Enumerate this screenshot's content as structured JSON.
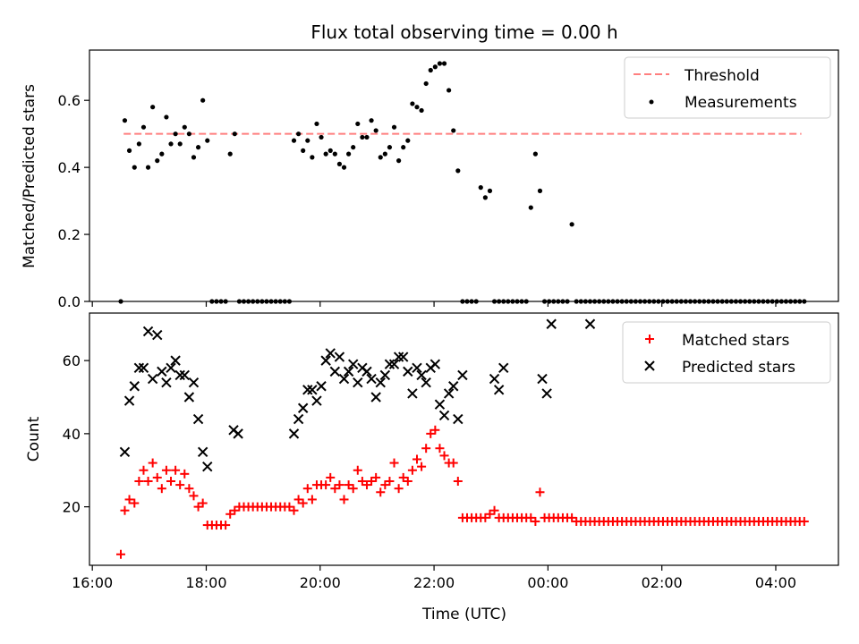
{
  "figure": {
    "title": "Flux total observing time = 0.00 h",
    "xlabel": "Time (UTC)"
  },
  "colors": {
    "threshold": "#ff7f7f",
    "measurements": "#000000",
    "matched": "#ff0000",
    "predicted": "#000000"
  },
  "chart_data": [
    {
      "type": "scatter",
      "ylabel": "Matched/Predicted stars",
      "xlim_hours": [
        15.95,
        29.1
      ],
      "ylim": [
        0,
        0.75
      ],
      "yticks": [
        0.0,
        0.2,
        0.4,
        0.6
      ],
      "ytick_labels": [
        "0.0",
        "0.2",
        "0.4",
        "0.6"
      ],
      "grid": false,
      "legend": "upper right",
      "threshold": {
        "name": "Threshold",
        "value": 0.5,
        "x_range": [
          16.55,
          28.45
        ],
        "style": "dashed"
      },
      "series": [
        {
          "name": "Measurements",
          "marker": "dot",
          "x": [
            16.5,
            16.57,
            16.65,
            16.74,
            16.82,
            16.9,
            16.98,
            17.06,
            17.14,
            17.22,
            17.3,
            17.38,
            17.46,
            17.54,
            17.62,
            17.7,
            17.78,
            17.86,
            17.94,
            18.02,
            18.1,
            18.18,
            18.26,
            18.34,
            18.42,
            18.5,
            18.58,
            18.66,
            18.74,
            18.82,
            18.9,
            18.98,
            19.06,
            19.14,
            19.22,
            19.3,
            19.38,
            19.46,
            19.54,
            19.62,
            19.7,
            19.78,
            19.86,
            19.94,
            20.02,
            20.1,
            20.18,
            20.26,
            20.34,
            20.42,
            20.5,
            20.58,
            20.66,
            20.74,
            20.82,
            20.9,
            20.98,
            21.06,
            21.14,
            21.22,
            21.3,
            21.38,
            21.46,
            21.54,
            21.62,
            21.7,
            21.78,
            21.86,
            21.94,
            22.02,
            22.1,
            22.18,
            22.26,
            22.34,
            22.42,
            22.5,
            22.58,
            22.66,
            22.74,
            22.82,
            22.9,
            22.98,
            23.06,
            23.14,
            23.22,
            23.3,
            23.38,
            23.46,
            23.54,
            23.62,
            23.7,
            23.78,
            23.86,
            23.94,
            24.02,
            24.1,
            24.18,
            24.26,
            24.34,
            24.42,
            24.5,
            24.58,
            24.66,
            24.74,
            24.82,
            24.9,
            24.98,
            25.06,
            25.14,
            25.22,
            25.3,
            25.38,
            25.46,
            25.54,
            25.62,
            25.7,
            25.78,
            25.86,
            25.94,
            26.02,
            26.1,
            26.18,
            26.26,
            26.34,
            26.42,
            26.5,
            26.58,
            26.66,
            26.74,
            26.82,
            26.9,
            26.98,
            27.06,
            27.14,
            27.22,
            27.3,
            27.38,
            27.46,
            27.54,
            27.62,
            27.7,
            27.78,
            27.86,
            27.94,
            28.02,
            28.1,
            28.18,
            28.26,
            28.34,
            28.42,
            28.5
          ],
          "y": [
            0.0,
            0.54,
            0.45,
            0.4,
            0.47,
            0.52,
            0.4,
            0.58,
            0.42,
            0.44,
            0.55,
            0.47,
            0.5,
            0.47,
            0.52,
            0.5,
            0.43,
            0.46,
            0.6,
            0.48,
            0.0,
            0.0,
            0.0,
            0.0,
            0.44,
            0.5,
            0.0,
            0.0,
            0.0,
            0.0,
            0.0,
            0.0,
            0.0,
            0.0,
            0.0,
            0.0,
            0.0,
            0.0,
            0.48,
            0.5,
            0.45,
            0.48,
            0.43,
            0.53,
            0.49,
            0.44,
            0.45,
            0.44,
            0.41,
            0.4,
            0.44,
            0.46,
            0.53,
            0.49,
            0.49,
            0.54,
            0.51,
            0.43,
            0.44,
            0.46,
            0.52,
            0.42,
            0.46,
            0.48,
            0.59,
            0.58,
            0.57,
            0.65,
            0.69,
            0.7,
            0.71,
            0.71,
            0.63,
            0.51,
            0.39,
            0.0,
            0.0,
            0.0,
            0.0,
            0.34,
            0.31,
            0.33,
            0.0,
            0.0,
            0.0,
            0.0,
            0.0,
            0.0,
            0.0,
            0.0,
            0.28,
            0.44,
            0.33,
            0.0,
            0.0,
            0.0,
            0.0,
            0.0,
            0.0,
            0.23,
            0.0,
            0.0,
            0.0,
            0.0,
            0.0,
            0.0,
            0.0,
            0.0,
            0.0,
            0.0,
            0.0,
            0.0,
            0.0,
            0.0,
            0.0,
            0.0,
            0.0,
            0.0,
            0.0,
            0.0,
            0.0,
            0.0,
            0.0,
            0.0,
            0.0,
            0.0,
            0.0,
            0.0,
            0.0,
            0.0,
            0.0,
            0.0,
            0.0,
            0.0,
            0.0,
            0.0,
            0.0,
            0.0,
            0.0,
            0.0,
            0.0,
            0.0,
            0.0,
            0.0,
            0.0,
            0.0,
            0.0,
            0.0,
            0.0,
            0.0,
            0.0
          ]
        }
      ]
    },
    {
      "type": "scatter",
      "ylabel": "Count",
      "xlim_hours": [
        15.95,
        29.1
      ],
      "ylim": [
        4,
        73
      ],
      "yticks": [
        20,
        40,
        60
      ],
      "ytick_labels": [
        "20",
        "40",
        "60"
      ],
      "xtick_hours": [
        16,
        18,
        20,
        22,
        24,
        26,
        28
      ],
      "xtick_labels": [
        "16:00",
        "18:00",
        "20:00",
        "22:00",
        "00:00",
        "02:00",
        "04:00"
      ],
      "grid": false,
      "legend": "upper right",
      "series": [
        {
          "name": "Matched stars",
          "marker": "plus",
          "x": [
            16.5,
            16.57,
            16.65,
            16.74,
            16.82,
            16.9,
            16.98,
            17.06,
            17.14,
            17.22,
            17.3,
            17.38,
            17.46,
            17.54,
            17.62,
            17.7,
            17.78,
            17.86,
            17.94,
            18.02,
            18.1,
            18.18,
            18.26,
            18.34,
            18.42,
            18.5,
            18.58,
            18.66,
            18.74,
            18.82,
            18.9,
            18.98,
            19.06,
            19.14,
            19.22,
            19.3,
            19.38,
            19.46,
            19.54,
            19.62,
            19.7,
            19.78,
            19.86,
            19.94,
            20.02,
            20.1,
            20.18,
            20.26,
            20.34,
            20.42,
            20.5,
            20.58,
            20.66,
            20.74,
            20.82,
            20.9,
            20.98,
            21.06,
            21.14,
            21.22,
            21.3,
            21.38,
            21.46,
            21.54,
            21.62,
            21.7,
            21.78,
            21.86,
            21.94,
            22.02,
            22.1,
            22.18,
            22.26,
            22.34,
            22.42,
            22.5,
            22.58,
            22.66,
            22.74,
            22.82,
            22.9,
            22.98,
            23.06,
            23.14,
            23.22,
            23.3,
            23.38,
            23.46,
            23.54,
            23.62,
            23.7,
            23.78,
            23.86,
            23.94,
            24.02,
            24.1,
            24.18,
            24.26,
            24.34,
            24.42,
            24.5,
            24.58,
            24.66,
            24.74,
            24.82,
            24.9,
            24.98,
            25.06,
            25.14,
            25.22,
            25.3,
            25.38,
            25.46,
            25.54,
            25.62,
            25.7,
            25.78,
            25.86,
            25.94,
            26.02,
            26.1,
            26.18,
            26.26,
            26.34,
            26.42,
            26.5,
            26.58,
            26.66,
            26.74,
            26.82,
            26.9,
            26.98,
            27.06,
            27.14,
            27.22,
            27.3,
            27.38,
            27.46,
            27.54,
            27.62,
            27.7,
            27.78,
            27.86,
            27.94,
            28.02,
            28.1,
            28.18,
            28.26,
            28.34,
            28.42,
            28.5
          ],
          "y": [
            7,
            19,
            22,
            21,
            27,
            30,
            27,
            32,
            28,
            25,
            30,
            27,
            30,
            26,
            29,
            25,
            23,
            20,
            21,
            15,
            15,
            15,
            15,
            15,
            18,
            19,
            20,
            20,
            20,
            20,
            20,
            20,
            20,
            20,
            20,
            20,
            20,
            20,
            19,
            22,
            21,
            25,
            22,
            26,
            26,
            26,
            28,
            25,
            26,
            22,
            26,
            25,
            30,
            27,
            26,
            27,
            28,
            24,
            26,
            27,
            32,
            25,
            28,
            27,
            30,
            33,
            31,
            36,
            40,
            41,
            36,
            34,
            32,
            32,
            27,
            17,
            17,
            17,
            17,
            17,
            17,
            18,
            19,
            17,
            17,
            17,
            17,
            17,
            17,
            17,
            17,
            16,
            24,
            17,
            17,
            17,
            17,
            17,
            17,
            17,
            16,
            16,
            16,
            16,
            16,
            16,
            16,
            16,
            16,
            16,
            16,
            16,
            16,
            16,
            16,
            16,
            16,
            16,
            16,
            16,
            16,
            16,
            16,
            16,
            16,
            16,
            16,
            16,
            16,
            16,
            16,
            16,
            16,
            16,
            16,
            16,
            16,
            16,
            16,
            16,
            16,
            16,
            16,
            16,
            16,
            16,
            16,
            16,
            16,
            16,
            16
          ]
        },
        {
          "name": "Predicted stars",
          "marker": "x",
          "x": [
            16.57,
            16.65,
            16.74,
            16.82,
            16.9,
            16.98,
            17.06,
            17.14,
            17.22,
            17.3,
            17.38,
            17.46,
            17.54,
            17.62,
            17.7,
            17.78,
            17.86,
            17.94,
            18.02,
            18.48,
            18.56,
            19.54,
            19.62,
            19.7,
            19.78,
            19.86,
            19.94,
            20.02,
            20.1,
            20.18,
            20.26,
            20.34,
            20.42,
            20.5,
            20.58,
            20.66,
            20.74,
            20.82,
            20.9,
            20.98,
            21.06,
            21.14,
            21.22,
            21.3,
            21.38,
            21.46,
            21.54,
            21.62,
            21.7,
            21.78,
            21.86,
            21.94,
            22.02,
            22.1,
            22.18,
            22.26,
            22.34,
            22.42,
            22.5,
            23.06,
            23.14,
            23.22,
            23.9,
            23.98,
            24.06,
            24.74
          ],
          "y": [
            35,
            49,
            53,
            58,
            58,
            68,
            55,
            67,
            57,
            54,
            58,
            60,
            56,
            56,
            50,
            54,
            44,
            35,
            31,
            41,
            40,
            40,
            44,
            47,
            52,
            52,
            49,
            53,
            60,
            62,
            57,
            61,
            55,
            57,
            59,
            54,
            58,
            57,
            55,
            50,
            54,
            56,
            59,
            59,
            61,
            61,
            57,
            51,
            58,
            56,
            54,
            58,
            59,
            48,
            45,
            51,
            53,
            44,
            56,
            55,
            52,
            58,
            55,
            51,
            70,
            70
          ]
        }
      ]
    }
  ]
}
